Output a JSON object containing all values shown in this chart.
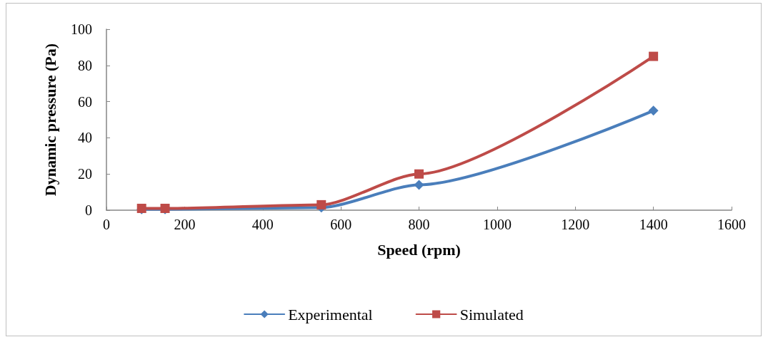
{
  "chart_data": {
    "type": "line",
    "xlabel": "Speed (rpm)",
    "ylabel": "Dynamic pressure (Pa)",
    "x": [
      90,
      150,
      550,
      800,
      1400
    ],
    "series": [
      {
        "name": "Experimental",
        "color": "#4a7ebb",
        "marker": "diamond",
        "values": [
          0.5,
          0.5,
          1.5,
          14,
          55
        ]
      },
      {
        "name": "Simulated",
        "color": "#be4b48",
        "marker": "square",
        "values": [
          1,
          1,
          3,
          20,
          85
        ]
      }
    ],
    "xlim": [
      0,
      1600
    ],
    "xticks": [
      0,
      200,
      400,
      600,
      800,
      1000,
      1200,
      1400,
      1600
    ],
    "ylim": [
      0,
      100
    ],
    "yticks": [
      0,
      20,
      40,
      60,
      80,
      100
    ],
    "grid": false,
    "legend": "bottom",
    "line_style": "solid"
  }
}
